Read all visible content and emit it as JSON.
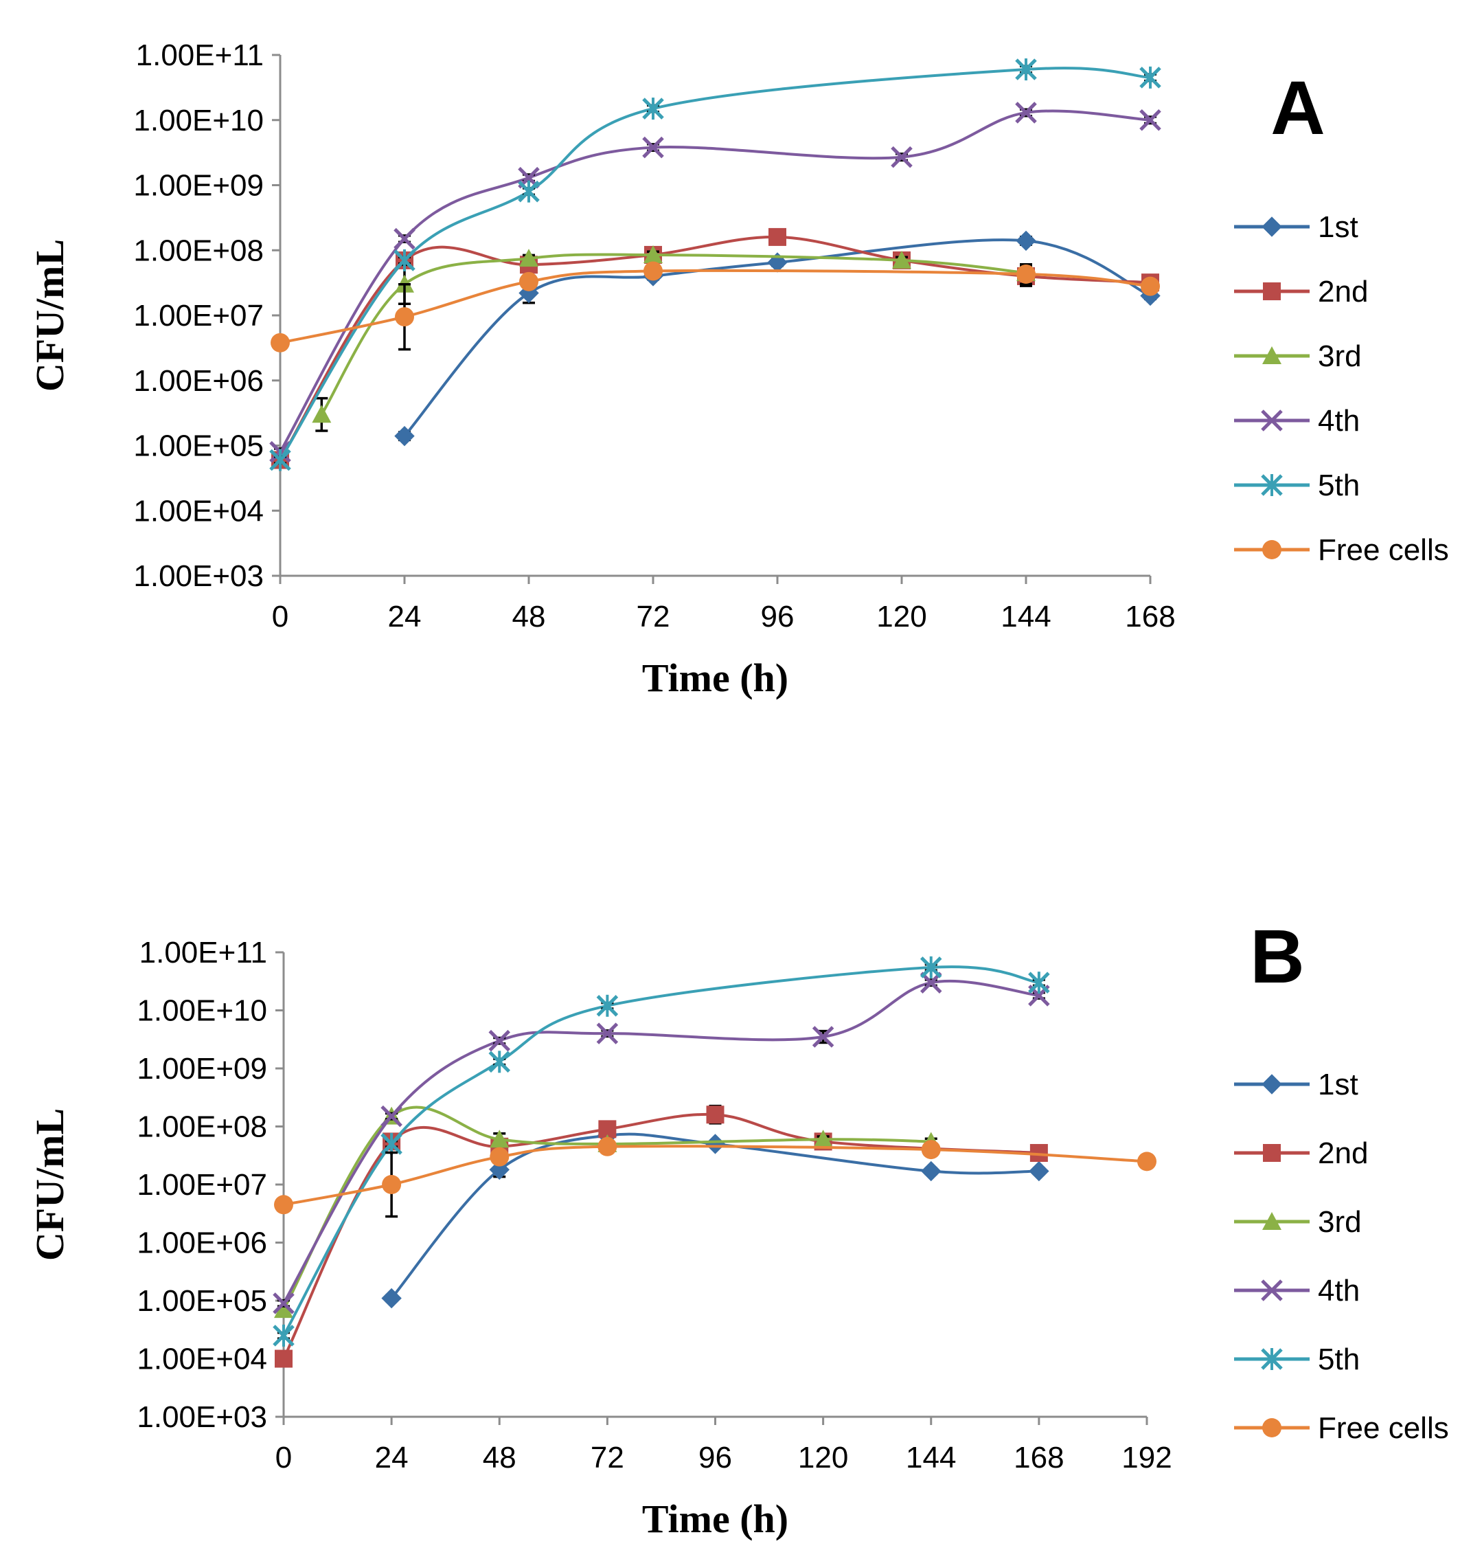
{
  "chart_data": [
    {
      "panel": "A",
      "type": "line",
      "title": "",
      "xlabel": "Time (h)",
      "ylabel": "CFU/mL",
      "yscale": "log",
      "ylim": [
        1000,
        100000000000
      ],
      "xlim": [
        0,
        168
      ],
      "x_ticks": [
        "0",
        "24",
        "48",
        "72",
        "96",
        "120",
        "144",
        "168"
      ],
      "y_ticks": [
        "1.00E+03",
        "1.00E+04",
        "1.00E+05",
        "1.00E+06",
        "1.00E+07",
        "1.00E+08",
        "1.00E+09",
        "1.00E+10",
        "1.00E+11"
      ],
      "legend_position": "right",
      "series": [
        {
          "name": "1st",
          "color": "#3a6ea5",
          "marker": "diamond",
          "x": [
            24,
            48,
            72,
            96,
            144,
            168
          ],
          "values": [
            140000,
            22000000,
            40000000,
            65000000,
            140000000,
            20000000
          ],
          "err": [
            0.06,
            0.15,
            0.05,
            0.05,
            0.06,
            0.05
          ]
        },
        {
          "name": "2nd",
          "color": "#b94a48",
          "marker": "square",
          "x": [
            0,
            24,
            48,
            72,
            96,
            120,
            144,
            168
          ],
          "values": [
            60000,
            70000000,
            60000000,
            85000000,
            160000000,
            70000000,
            40000000,
            32000000
          ],
          "err": [
            0.05,
            0.05,
            0.05,
            0.05,
            0.05,
            0.05,
            0.15,
            0.05
          ]
        },
        {
          "name": "3rd",
          "color": "#8bb146",
          "marker": "triangle",
          "x": [
            8,
            24,
            48,
            72,
            120,
            144
          ],
          "values": [
            300000,
            30000000,
            75000000,
            85000000,
            70000000,
            45000000
          ],
          "err": [
            0.25,
            0.3,
            0.05,
            0.05,
            0.05,
            0.05
          ]
        },
        {
          "name": "4th",
          "color": "#7d5a9e",
          "marker": "x",
          "x": [
            0,
            24,
            48,
            72,
            120,
            144,
            168
          ],
          "values": [
            80000,
            150000000,
            1300000000,
            3800000000,
            2700000000,
            13000000000,
            10000000000
          ],
          "err": [
            0.05,
            0.05,
            0.05,
            0.05,
            0.05,
            0.05,
            0.05
          ]
        },
        {
          "name": "5th",
          "color": "#3aa0b5",
          "marker": "star",
          "x": [
            0,
            24,
            48,
            72,
            144,
            168
          ],
          "values": [
            60000,
            70000000,
            800000000,
            15000000000,
            60000000000,
            45000000000
          ],
          "err": [
            0.05,
            0.05,
            0.05,
            0.05,
            0.05,
            0.05
          ]
        },
        {
          "name": "Free cells",
          "color": "#e8843a",
          "marker": "circle",
          "x": [
            0,
            24,
            48,
            72,
            144,
            168
          ],
          "values": [
            3800000,
            9500000,
            33000000,
            48000000,
            43000000,
            28000000
          ],
          "err": [
            0.05,
            0.5,
            0.05,
            0.05,
            0.15,
            0.05
          ]
        }
      ]
    },
    {
      "panel": "B",
      "type": "line",
      "title": "",
      "xlabel": "Time (h)",
      "ylabel": "CFU/mL",
      "yscale": "log",
      "ylim": [
        1000,
        100000000000
      ],
      "xlim": [
        0,
        192
      ],
      "x_ticks": [
        "0",
        "24",
        "48",
        "72",
        "96",
        "120",
        "144",
        "168",
        "192"
      ],
      "y_ticks": [
        "1.00E+03",
        "1.00E+04",
        "1.00E+05",
        "1.00E+06",
        "1.00E+07",
        "1.00E+08",
        "1.00E+09",
        "1.00E+10",
        "1.00E+11"
      ],
      "legend_position": "right",
      "series": [
        {
          "name": "1st",
          "color": "#3a6ea5",
          "marker": "diamond",
          "x": [
            24,
            48,
            72,
            96,
            144,
            168
          ],
          "values": [
            110000,
            18000000,
            70000000,
            50000000,
            17000000,
            17000000
          ],
          "err": [
            0.05,
            0.12,
            0.05,
            0.05,
            0.05,
            0.05
          ]
        },
        {
          "name": "2nd",
          "color": "#b94a48",
          "marker": "square",
          "x": [
            0,
            24,
            48,
            72,
            96,
            120,
            168
          ],
          "values": [
            10000,
            55000000,
            45000000,
            90000000,
            160000000,
            55000000,
            35000000
          ],
          "err": [
            0.05,
            0.12,
            0.05,
            0.05,
            0.15,
            0.05,
            0.05
          ]
        },
        {
          "name": "3rd",
          "color": "#8bb146",
          "marker": "triangle",
          "x": [
            0,
            24,
            48,
            72,
            120,
            144
          ],
          "values": [
            70000,
            150000000,
            60000000,
            50000000,
            60000000,
            55000000
          ],
          "err": [
            0.05,
            0.05,
            0.1,
            0.05,
            0.05,
            0.05
          ]
        },
        {
          "name": "4th",
          "color": "#7d5a9e",
          "marker": "x",
          "x": [
            0,
            24,
            48,
            72,
            120,
            144,
            168
          ],
          "values": [
            90000,
            150000000,
            3000000000,
            4000000000,
            3500000000,
            30000000000,
            18000000000
          ],
          "err": [
            0.05,
            0.05,
            0.05,
            0.05,
            0.1,
            0.05,
            0.05
          ]
        },
        {
          "name": "5th",
          "color": "#3aa0b5",
          "marker": "star",
          "x": [
            0,
            24,
            48,
            72,
            144,
            168
          ],
          "values": [
            25000,
            50000000,
            1300000000,
            12000000000,
            55000000000,
            30000000000
          ],
          "err": [
            0.05,
            0.05,
            0.05,
            0.05,
            0.05,
            0.05
          ]
        },
        {
          "name": "Free cells",
          "color": "#e8843a",
          "marker": "circle",
          "x": [
            0,
            24,
            48,
            72,
            144,
            192
          ],
          "values": [
            4500000,
            10000000,
            30000000,
            45000000,
            40000000,
            25000000
          ],
          "err": [
            0.1,
            0.55,
            0.05,
            0.05,
            0.05,
            0.05
          ]
        }
      ]
    }
  ]
}
